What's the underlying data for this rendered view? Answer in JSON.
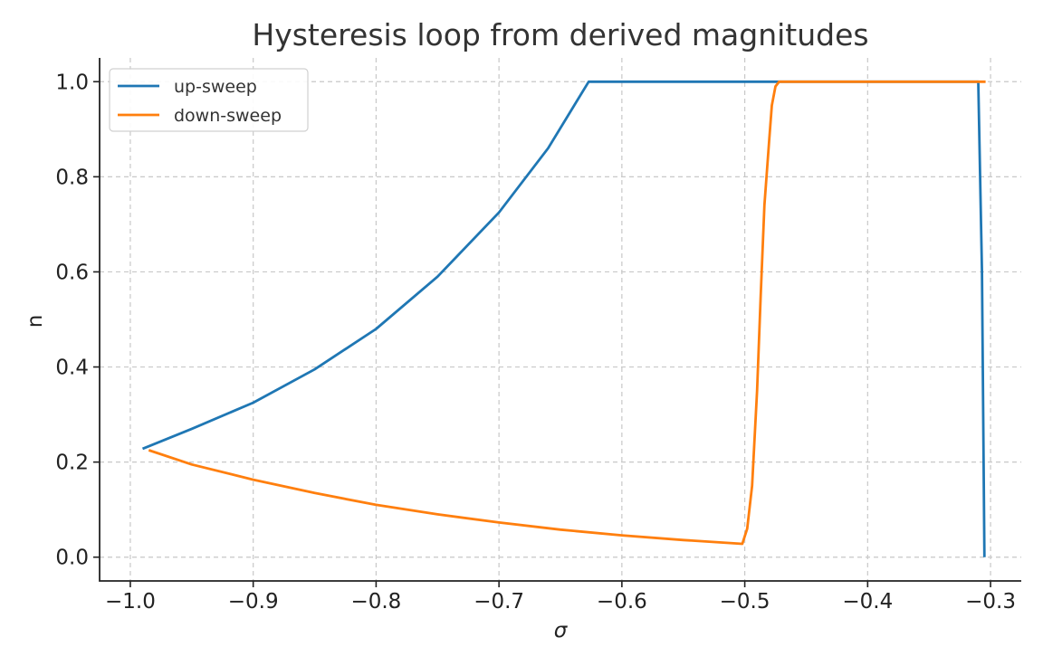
{
  "chart_data": {
    "type": "line",
    "title": "Hysteresis loop from derived magnitudes",
    "xlabel": "σ",
    "ylabel": "n",
    "xlim": [
      -1.025,
      -0.275
    ],
    "ylim": [
      -0.05,
      1.05
    ],
    "x_ticks": [
      -1.0,
      -0.9,
      -0.8,
      -0.7,
      -0.6,
      -0.5,
      -0.4,
      -0.3
    ],
    "x_tick_labels": [
      "−1.0",
      "−0.9",
      "−0.8",
      "−0.7",
      "−0.6",
      "−0.5",
      "−0.4",
      "−0.3"
    ],
    "y_ticks": [
      0.0,
      0.2,
      0.4,
      0.6,
      0.8,
      1.0
    ],
    "y_tick_labels": [
      "0.0",
      "0.2",
      "0.4",
      "0.6",
      "0.8",
      "1.0"
    ],
    "grid": true,
    "legend_position": "top-left",
    "series": [
      {
        "name": "up-sweep",
        "color": "#1f77b4",
        "x": [
          -0.99,
          -0.95,
          -0.9,
          -0.85,
          -0.8,
          -0.75,
          -0.7,
          -0.66,
          -0.627,
          -0.55,
          -0.45,
          -0.4,
          -0.31,
          -0.307,
          -0.305
        ],
        "y": [
          0.228,
          0.27,
          0.325,
          0.395,
          0.48,
          0.59,
          0.725,
          0.86,
          1.0,
          1.0,
          1.0,
          1.0,
          1.0,
          0.6,
          0.0
        ]
      },
      {
        "name": "down-sweep",
        "color": "#ff7f0e",
        "x": [
          -0.985,
          -0.95,
          -0.9,
          -0.85,
          -0.8,
          -0.75,
          -0.7,
          -0.65,
          -0.6,
          -0.55,
          -0.502,
          -0.498,
          -0.494,
          -0.49,
          -0.487,
          -0.484,
          -0.48,
          -0.478,
          -0.475,
          -0.472,
          -0.465,
          -0.4,
          -0.304
        ],
        "y": [
          0.225,
          0.195,
          0.163,
          0.135,
          0.11,
          0.09,
          0.073,
          0.058,
          0.046,
          0.036,
          0.028,
          0.06,
          0.15,
          0.35,
          0.55,
          0.74,
          0.88,
          0.95,
          0.99,
          1.0,
          1.0,
          1.0,
          1.0
        ]
      }
    ]
  }
}
